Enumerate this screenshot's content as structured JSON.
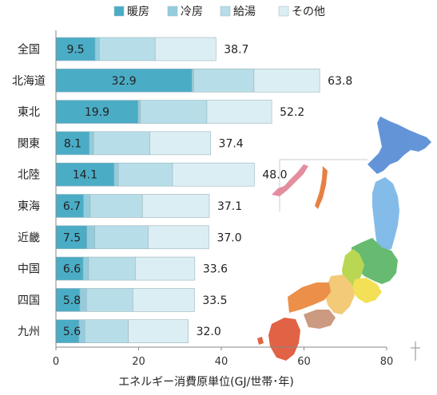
{
  "chart_data": {
    "type": "bar",
    "orientation": "horizontal",
    "stacked": true,
    "categories": [
      "全国",
      "北海道",
      "東北",
      "関東",
      "北陸",
      "東海",
      "近畿",
      "中国",
      "四国",
      "九州"
    ],
    "series": [
      {
        "name": "暖房",
        "color": "#4bacc6",
        "values": [
          9.5,
          32.9,
          19.9,
          8.1,
          14.1,
          6.7,
          7.5,
          6.6,
          5.8,
          5.6
        ]
      },
      {
        "name": "冷房",
        "color": "#93cddd",
        "values": [
          1.0,
          0.4,
          0.5,
          1.0,
          1.0,
          1.6,
          1.9,
          1.3,
          1.6,
          1.4
        ]
      },
      {
        "name": "給湯",
        "color": "#b7dee8",
        "values": [
          13.5,
          14.6,
          16.1,
          13.6,
          13.1,
          12.6,
          12.9,
          11.3,
          11.2,
          10.5
        ]
      },
      {
        "name": "その他",
        "color": "#dbeef3",
        "values": [
          14.7,
          15.9,
          15.7,
          14.7,
          19.8,
          16.2,
          14.7,
          14.4,
          14.9,
          14.5
        ]
      }
    ],
    "data_labels": [
      "9.5",
      "32.9",
      "19.9",
      "8.1",
      "14.1",
      "6.7",
      "7.5",
      "6.6",
      "5.8",
      "5.6"
    ],
    "totals": [
      "38.7",
      "63.8",
      "52.2",
      "37.4",
      "48.0",
      "37.1",
      "37.0",
      "33.6",
      "33.5",
      "32.0"
    ],
    "xlabel": "エネルギー消費原単位(GJ/世帯･年)",
    "xlim": [
      0,
      80
    ],
    "xticks": [
      "0",
      "20",
      "40",
      "60",
      "80"
    ],
    "legend_position": "top",
    "grid": false,
    "decoration": "japan-region-map-icon"
  }
}
